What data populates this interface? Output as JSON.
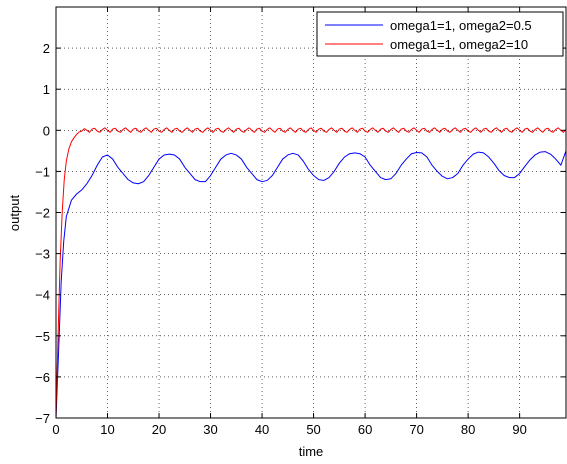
{
  "chart_data": {
    "type": "line",
    "title": "",
    "xlabel": "time",
    "ylabel": "output",
    "xlim": [
      0,
      99
    ],
    "ylim": [
      -7,
      3
    ],
    "xticks": [
      0,
      10,
      20,
      30,
      40,
      50,
      60,
      70,
      80,
      90
    ],
    "yticks": [
      -7,
      -6,
      -5,
      -4,
      -3,
      -2,
      -1,
      0,
      1,
      2
    ],
    "grid": true,
    "legend_position": "top-right",
    "series": [
      {
        "name": "omega1=1, omega2=0.5",
        "color": "#0000ff",
        "points": [
          [
            0,
            -7
          ],
          [
            0.5,
            -5.4
          ],
          [
            1,
            -3.7
          ],
          [
            1.5,
            -2.7
          ],
          [
            2,
            -2.1
          ],
          [
            3,
            -1.7
          ],
          [
            4,
            -1.55
          ],
          [
            5,
            -1.45
          ],
          [
            6,
            -1.3
          ],
          [
            7,
            -1.1
          ],
          [
            8,
            -0.85
          ],
          [
            9,
            -0.65
          ],
          [
            10,
            -0.6
          ],
          [
            11,
            -0.7
          ],
          [
            12,
            -0.9
          ],
          [
            13,
            -1.05
          ],
          [
            14,
            -1.2
          ],
          [
            15,
            -1.28
          ],
          [
            16,
            -1.3
          ],
          [
            17,
            -1.25
          ],
          [
            18,
            -1.1
          ],
          [
            19,
            -0.9
          ],
          [
            20,
            -0.7
          ],
          [
            21,
            -0.6
          ],
          [
            22,
            -0.58
          ],
          [
            23,
            -0.6
          ],
          [
            24,
            -0.7
          ],
          [
            25,
            -0.9
          ],
          [
            26,
            -1.05
          ],
          [
            27,
            -1.2
          ],
          [
            28,
            -1.25
          ],
          [
            29,
            -1.25
          ],
          [
            30,
            -1.1
          ],
          [
            31,
            -0.9
          ],
          [
            32,
            -0.7
          ],
          [
            33,
            -0.6
          ],
          [
            34,
            -0.56
          ],
          [
            35,
            -0.6
          ],
          [
            36,
            -0.7
          ],
          [
            37,
            -0.9
          ],
          [
            38,
            -1.05
          ],
          [
            39,
            -1.2
          ],
          [
            40,
            -1.25
          ],
          [
            41,
            -1.22
          ],
          [
            42,
            -1.1
          ],
          [
            43,
            -0.9
          ],
          [
            44,
            -0.7
          ],
          [
            45,
            -0.6
          ],
          [
            46,
            -0.56
          ],
          [
            47,
            -0.6
          ],
          [
            48,
            -0.75
          ],
          [
            49,
            -0.95
          ],
          [
            50,
            -1.1
          ],
          [
            51,
            -1.2
          ],
          [
            52,
            -1.22
          ],
          [
            53,
            -1.15
          ],
          [
            54,
            -1.0
          ],
          [
            55,
            -0.8
          ],
          [
            56,
            -0.65
          ],
          [
            57,
            -0.57
          ],
          [
            58,
            -0.55
          ],
          [
            59,
            -0.57
          ],
          [
            60,
            -0.65
          ],
          [
            61,
            -0.85
          ],
          [
            62,
            -1.0
          ],
          [
            63,
            -1.15
          ],
          [
            64,
            -1.2
          ],
          [
            65,
            -1.18
          ],
          [
            66,
            -1.05
          ],
          [
            67,
            -0.85
          ],
          [
            68,
            -0.7
          ],
          [
            69,
            -0.57
          ],
          [
            70,
            -0.54
          ],
          [
            71,
            -0.55
          ],
          [
            72,
            -0.65
          ],
          [
            73,
            -0.85
          ],
          [
            74,
            -1.0
          ],
          [
            75,
            -1.12
          ],
          [
            76,
            -1.18
          ],
          [
            77,
            -1.15
          ],
          [
            78,
            -1.05
          ],
          [
            79,
            -0.85
          ],
          [
            80,
            -0.7
          ],
          [
            81,
            -0.58
          ],
          [
            82,
            -0.53
          ],
          [
            83,
            -0.55
          ],
          [
            84,
            -0.65
          ],
          [
            85,
            -0.8
          ],
          [
            86,
            -0.98
          ],
          [
            87,
            -1.1
          ],
          [
            88,
            -1.15
          ],
          [
            89,
            -1.15
          ],
          [
            90,
            -1.05
          ],
          [
            91,
            -0.88
          ],
          [
            92,
            -0.72
          ],
          [
            93,
            -0.6
          ],
          [
            94,
            -0.53
          ],
          [
            95,
            -0.52
          ],
          [
            96,
            -0.58
          ],
          [
            97,
            -0.7
          ],
          [
            98,
            -0.85
          ],
          [
            99,
            -0.5
          ]
        ]
      },
      {
        "name": "omega1=1, omega2=10",
        "color": "#ff0000",
        "points": [
          [
            0,
            -7
          ],
          [
            0.4,
            -5.0
          ],
          [
            0.8,
            -3.2
          ],
          [
            1.2,
            -2.0
          ],
          [
            1.6,
            -1.2
          ],
          [
            2,
            -0.75
          ],
          [
            2.5,
            -0.45
          ],
          [
            3,
            -0.28
          ],
          [
            3.5,
            -0.18
          ],
          [
            4,
            -0.1
          ],
          [
            4.5,
            -0.04
          ],
          [
            5,
            -0.02
          ],
          [
            5.5,
            0.04
          ],
          [
            6,
            0.0
          ],
          [
            6.5,
            -0.05
          ],
          [
            7,
            0.03
          ],
          [
            7.5,
            0.05
          ],
          [
            8,
            -0.02
          ],
          [
            8.5,
            -0.05
          ],
          [
            9,
            0.02
          ],
          [
            9.5,
            0.06
          ],
          [
            10,
            0.0
          ],
          [
            10.5,
            -0.05
          ],
          [
            11,
            0.03
          ],
          [
            11.5,
            0.05
          ],
          [
            12,
            -0.02
          ],
          [
            12.5,
            -0.05
          ],
          [
            13,
            0.02
          ],
          [
            13.5,
            0.06
          ],
          [
            14,
            0.0
          ],
          [
            14.5,
            -0.05
          ],
          [
            15,
            0.03
          ],
          [
            15.5,
            0.05
          ],
          [
            16,
            -0.02
          ],
          [
            16.5,
            -0.05
          ],
          [
            17,
            0.02
          ],
          [
            17.5,
            0.06
          ],
          [
            18,
            0.0
          ],
          [
            18.5,
            -0.05
          ],
          [
            19,
            0.03
          ],
          [
            19.5,
            0.05
          ],
          [
            20,
            -0.02
          ],
          [
            20.5,
            -0.05
          ],
          [
            21,
            0.02
          ],
          [
            21.5,
            0.06
          ],
          [
            22,
            0.0
          ],
          [
            22.5,
            -0.05
          ],
          [
            23,
            0.03
          ],
          [
            23.5,
            0.05
          ],
          [
            24,
            -0.02
          ],
          [
            24.5,
            -0.05
          ],
          [
            25,
            0.02
          ],
          [
            25.5,
            0.06
          ],
          [
            26,
            0.0
          ],
          [
            26.5,
            -0.05
          ],
          [
            27,
            0.03
          ],
          [
            27.5,
            0.05
          ],
          [
            28,
            -0.02
          ],
          [
            28.5,
            -0.05
          ],
          [
            29,
            0.02
          ],
          [
            29.5,
            0.06
          ],
          [
            30,
            0.0
          ],
          [
            30.5,
            -0.05
          ],
          [
            31,
            0.03
          ],
          [
            31.5,
            0.05
          ],
          [
            32,
            -0.02
          ],
          [
            32.5,
            -0.05
          ],
          [
            33,
            0.02
          ],
          [
            33.5,
            0.06
          ],
          [
            34,
            0.0
          ],
          [
            34.5,
            -0.05
          ],
          [
            35,
            0.03
          ],
          [
            35.5,
            0.05
          ],
          [
            36,
            -0.02
          ],
          [
            36.5,
            -0.05
          ],
          [
            37,
            0.02
          ],
          [
            37.5,
            0.06
          ],
          [
            38,
            0.0
          ],
          [
            38.5,
            -0.05
          ],
          [
            39,
            0.03
          ],
          [
            39.5,
            0.05
          ],
          [
            40,
            -0.02
          ],
          [
            40.5,
            -0.05
          ],
          [
            41,
            0.02
          ],
          [
            41.5,
            0.06
          ],
          [
            42,
            0.0
          ],
          [
            42.5,
            -0.05
          ],
          [
            43,
            0.03
          ],
          [
            43.5,
            0.05
          ],
          [
            44,
            -0.02
          ],
          [
            44.5,
            -0.05
          ],
          [
            45,
            0.02
          ],
          [
            45.5,
            0.06
          ],
          [
            46,
            0.0
          ],
          [
            46.5,
            -0.05
          ],
          [
            47,
            0.03
          ],
          [
            47.5,
            0.05
          ],
          [
            48,
            -0.02
          ],
          [
            48.5,
            -0.05
          ],
          [
            49,
            0.02
          ],
          [
            49.5,
            0.06
          ],
          [
            50,
            0.0
          ],
          [
            50.5,
            -0.05
          ],
          [
            51,
            0.03
          ],
          [
            51.5,
            0.05
          ],
          [
            52,
            -0.02
          ],
          [
            52.5,
            -0.05
          ],
          [
            53,
            0.02
          ],
          [
            53.5,
            0.06
          ],
          [
            54,
            0.0
          ],
          [
            54.5,
            -0.05
          ],
          [
            55,
            0.03
          ],
          [
            55.5,
            0.05
          ],
          [
            56,
            -0.02
          ],
          [
            56.5,
            -0.05
          ],
          [
            57,
            0.02
          ],
          [
            57.5,
            0.06
          ],
          [
            58,
            0.0
          ],
          [
            58.5,
            -0.05
          ],
          [
            59,
            0.03
          ],
          [
            59.5,
            0.05
          ],
          [
            60,
            -0.02
          ],
          [
            60.5,
            -0.05
          ],
          [
            61,
            0.02
          ],
          [
            61.5,
            0.06
          ],
          [
            62,
            0.0
          ],
          [
            62.5,
            -0.05
          ],
          [
            63,
            0.03
          ],
          [
            63.5,
            0.05
          ],
          [
            64,
            -0.02
          ],
          [
            64.5,
            -0.05
          ],
          [
            65,
            0.02
          ],
          [
            65.5,
            0.06
          ],
          [
            66,
            0.0
          ],
          [
            66.5,
            -0.05
          ],
          [
            67,
            0.03
          ],
          [
            67.5,
            0.05
          ],
          [
            68,
            -0.02
          ],
          [
            68.5,
            -0.05
          ],
          [
            69,
            0.02
          ],
          [
            69.5,
            0.06
          ],
          [
            70,
            0.0
          ],
          [
            70.5,
            -0.05
          ],
          [
            71,
            0.03
          ],
          [
            71.5,
            0.05
          ],
          [
            72,
            -0.02
          ],
          [
            72.5,
            -0.05
          ],
          [
            73,
            0.02
          ],
          [
            73.5,
            0.06
          ],
          [
            74,
            0.0
          ],
          [
            74.5,
            -0.05
          ],
          [
            75,
            0.03
          ],
          [
            75.5,
            0.05
          ],
          [
            76,
            -0.02
          ],
          [
            76.5,
            -0.05
          ],
          [
            77,
            0.02
          ],
          [
            77.5,
            0.06
          ],
          [
            78,
            0.0
          ],
          [
            78.5,
            -0.05
          ],
          [
            79,
            0.03
          ],
          [
            79.5,
            0.05
          ],
          [
            80,
            -0.02
          ],
          [
            80.5,
            -0.05
          ],
          [
            81,
            0.02
          ],
          [
            81.5,
            0.06
          ],
          [
            82,
            0.0
          ],
          [
            82.5,
            -0.05
          ],
          [
            83,
            0.03
          ],
          [
            83.5,
            0.05
          ],
          [
            84,
            -0.02
          ],
          [
            84.5,
            -0.05
          ],
          [
            85,
            0.02
          ],
          [
            85.5,
            0.06
          ],
          [
            86,
            0.0
          ],
          [
            86.5,
            -0.05
          ],
          [
            87,
            0.03
          ],
          [
            87.5,
            0.05
          ],
          [
            88,
            -0.02
          ],
          [
            88.5,
            -0.05
          ],
          [
            89,
            0.02
          ],
          [
            89.5,
            0.06
          ],
          [
            90,
            0.0
          ],
          [
            90.5,
            -0.05
          ],
          [
            91,
            0.03
          ],
          [
            91.5,
            0.05
          ],
          [
            92,
            -0.02
          ],
          [
            92.5,
            -0.05
          ],
          [
            93,
            0.02
          ],
          [
            93.5,
            0.06
          ],
          [
            94,
            0.0
          ],
          [
            94.5,
            -0.05
          ],
          [
            95,
            0.03
          ],
          [
            95.5,
            0.05
          ],
          [
            96,
            -0.02
          ],
          [
            96.5,
            -0.05
          ],
          [
            97,
            0.02
          ],
          [
            97.5,
            0.06
          ],
          [
            98,
            0.0
          ],
          [
            98.5,
            -0.05
          ],
          [
            99,
            0.02
          ]
        ]
      }
    ]
  }
}
